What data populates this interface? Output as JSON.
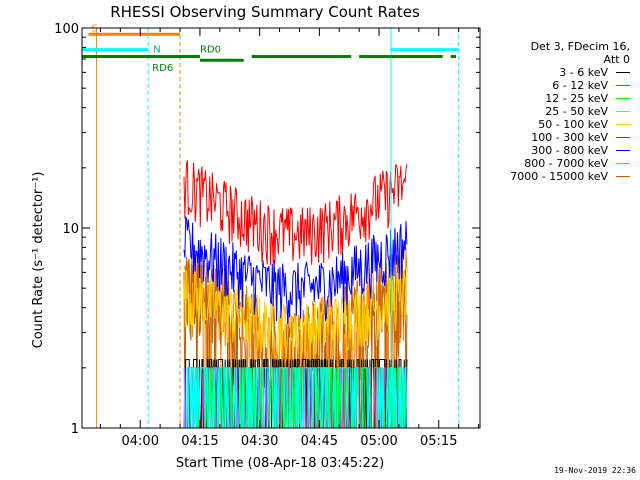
{
  "chart_data": {
    "type": "line",
    "title": "RHESSI Observing Summary Count Rates",
    "xlabel": "Start Time (08-Apr-18 03:45:22)",
    "ylabel": "Count Rate (s⁻¹ detector⁻¹)",
    "scale": "log",
    "ylim": [
      1,
      100
    ],
    "xlim_minutes": [
      "03:45",
      "05:25"
    ],
    "x_ticks": [
      "04:00",
      "04:15",
      "04:30",
      "04:45",
      "05:00",
      "05:15"
    ],
    "y_ticks": [
      "1",
      "10",
      "100"
    ],
    "data_start": "04:11",
    "data_end": "05:07",
    "series": [
      {
        "name": "3 - 6 keV",
        "color": "#000000",
        "base": [
          2.2,
          2.2
        ]
      },
      {
        "name": "6 - 12 keV",
        "color": "#ff00ff",
        "base": [
          2.0,
          2.0
        ]
      },
      {
        "name": "12 - 25 keV",
        "color": "#00ff00",
        "base": [
          2.0,
          2.0
        ]
      },
      {
        "name": "25 - 50 keV",
        "color": "#00ffff",
        "base": [
          2.0,
          2.0
        ]
      },
      {
        "name": "50 - 100 keV",
        "color": "#ffd000",
        "base": [
          4.8,
          3.2
        ]
      },
      {
        "name": "100 - 300 keV",
        "color": "#ff0000",
        "base": [
          17,
          9.5
        ]
      },
      {
        "name": "300 - 800 keV",
        "color": "#0000ff",
        "base": [
          8.5,
          5.0
        ]
      },
      {
        "name": "800 - 7000 keV",
        "color": "#ff8000",
        "base": [
          5.2,
          2.6
        ]
      },
      {
        "name": "7000 - 15000 keV",
        "color": "#c06000",
        "base": [
          5.0,
          2.5
        ]
      }
    ],
    "legend_header": [
      "Det 3, FDecim 16,",
      "Att 0"
    ],
    "annotations": {
      "saa": {
        "label": "S",
        "start": "03:47",
        "end": "04:10",
        "color": "#ff8000",
        "level": 93
      },
      "night": {
        "label": "N",
        "segments": [
          [
            "03:45",
            "04:02"
          ],
          [
            "05:03",
            "05:20"
          ]
        ],
        "color": "#00ffff",
        "level": 78
      },
      "rd0": {
        "label": "RD0",
        "color": "#008000",
        "level": 72
      },
      "rd6": {
        "label": "RD6",
        "color": "#008000",
        "level": 69
      },
      "green_segments": [
        [
          "03:45",
          "04:15"
        ],
        [
          "04:15",
          "04:26"
        ],
        [
          "04:28",
          "04:53"
        ],
        [
          "04:55",
          "05:16"
        ],
        [
          "05:18",
          "05:25"
        ]
      ],
      "vlines": [
        {
          "t": "03:49",
          "color": "#ff8000",
          "dash": false
        },
        {
          "t": "04:02",
          "color": "#00ffff",
          "dash": true
        },
        {
          "t": "04:10",
          "color": "#ff8000",
          "dash": true
        },
        {
          "t": "05:03",
          "color": "#00ffff",
          "dash": false
        },
        {
          "t": "05:20",
          "color": "#00ffff",
          "dash": true
        }
      ]
    }
  },
  "timestamp": "19-Nov-2019 22:36"
}
